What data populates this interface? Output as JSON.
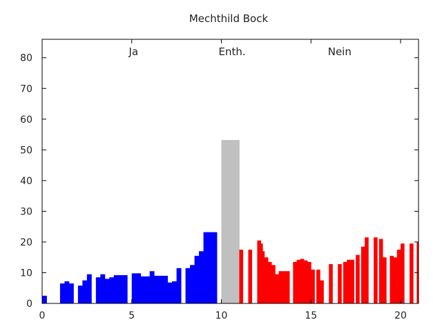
{
  "chart_data": {
    "type": "bar",
    "title": "Mechthild Bock",
    "xlim": [
      0,
      21
    ],
    "ylim": [
      0,
      86
    ],
    "xticks": [
      0,
      5,
      10,
      15,
      20
    ],
    "yticks": [
      0,
      10,
      20,
      30,
      40,
      50,
      60,
      70,
      80
    ],
    "region_labels": [
      {
        "text": "Ja",
        "x": 5.1
      },
      {
        "text": "Enth.",
        "x": 10.6
      },
      {
        "text": "Nein",
        "x": 16.6
      }
    ],
    "series": [
      {
        "color": "#0000ff",
        "x": [
          0,
          1,
          1.25,
          1.5,
          2,
          2.25,
          2.5,
          3,
          3.25,
          3.5,
          3.75,
          4,
          4.25,
          4.5,
          5,
          5.25,
          5.5,
          5.75,
          6,
          6.25,
          6.5,
          6.75,
          7,
          7.25,
          7.5,
          8,
          8.25,
          8.5,
          8.75,
          9,
          9.25,
          9.5
        ],
        "y": [
          2.5,
          6.5,
          7.2,
          6.5,
          5.8,
          7.5,
          9.5,
          8.5,
          9.5,
          8,
          8.5,
          9.2,
          9.2,
          9.2,
          9.8,
          9.8,
          8.8,
          8.8,
          10.5,
          9,
          9,
          9,
          6.8,
          7.2,
          11.5,
          11.5,
          12.5,
          15.5,
          17,
          23.2,
          23.2,
          23.2
        ],
        "width": 0.25
      },
      {
        "color": "#c0c0c0",
        "x": [
          10
        ],
        "y": [
          53.2
        ],
        "width": 1
      },
      {
        "color": "#ff0000",
        "x": [
          11,
          11.5,
          12,
          12.1,
          12.2,
          12.4,
          12.6,
          12.8,
          13,
          13.2,
          13.4,
          13.6,
          14,
          14.2,
          14.4,
          14.6,
          14.8,
          15,
          15.3,
          15.5,
          16,
          16.5,
          16.8,
          17,
          17.2,
          17.5,
          17.8,
          18,
          18.5,
          18.8,
          19,
          19.4,
          19.6,
          19.8,
          20,
          20.5,
          20.9
        ],
        "y": [
          17.5,
          17.5,
          20.5,
          19.5,
          17,
          15,
          13.5,
          12.5,
          9.5,
          10.5,
          10.5,
          10.5,
          13.5,
          14.2,
          14.5,
          14,
          13.5,
          11,
          11,
          7.5,
          12.8,
          12.8,
          13.5,
          14.2,
          14.2,
          15.8,
          18.5,
          21.5,
          21.5,
          21,
          15,
          15.5,
          15,
          17.5,
          19.5,
          19.5,
          20
        ],
        "width": 0.2
      }
    ]
  }
}
